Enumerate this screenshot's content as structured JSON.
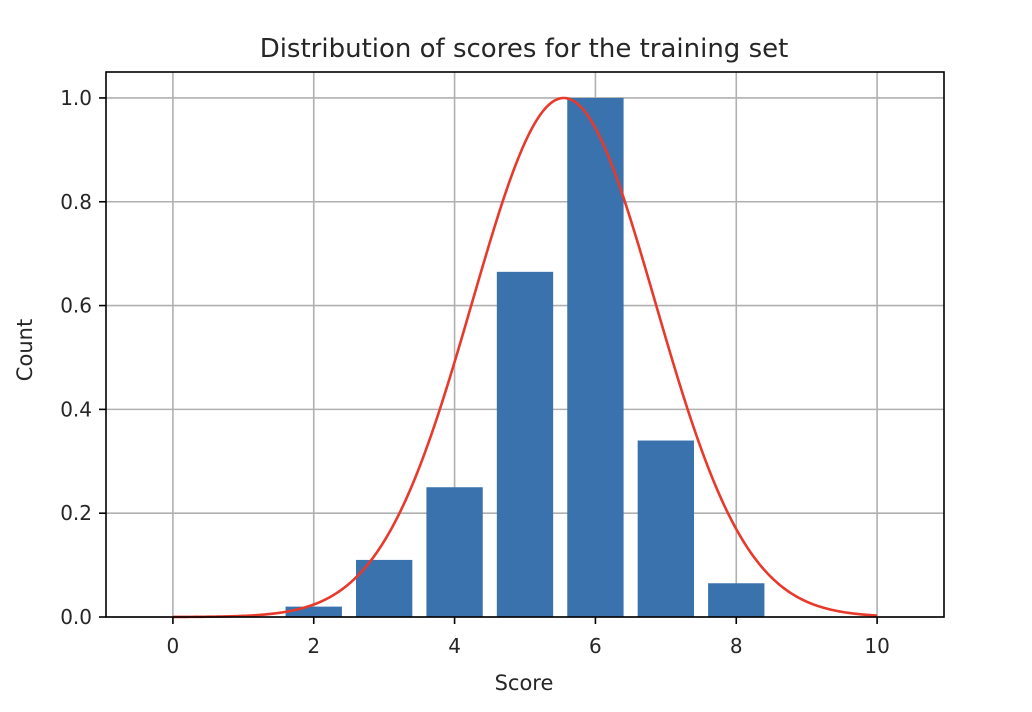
{
  "chart_data": {
    "type": "bar",
    "title": "Distribution of scores for the training set",
    "xlabel": "Score",
    "ylabel": "Count",
    "xlim": [
      -0.95,
      10.95
    ],
    "ylim": [
      0,
      1.05
    ],
    "x_ticks": [
      0,
      2,
      4,
      6,
      8,
      10
    ],
    "x_tick_labels": [
      "0",
      "2",
      "4",
      "6",
      "8",
      "10"
    ],
    "y_ticks": [
      0,
      0.2,
      0.4,
      0.6,
      0.8,
      1.0
    ],
    "y_tick_labels": [
      "0.0",
      "0.2",
      "0.4",
      "0.6",
      "0.8",
      "1.0"
    ],
    "grid": true,
    "bars": {
      "x": [
        2,
        3,
        4,
        5,
        6,
        7,
        8
      ],
      "values": [
        0.02,
        0.11,
        0.25,
        0.665,
        1.0,
        0.34,
        0.065
      ],
      "color": "#3a72ad"
    },
    "curve": {
      "type": "gaussian",
      "mean": 5.55,
      "std": 1.3,
      "peak": 1.0,
      "x_range": [
        0,
        10
      ],
      "color": "#e8392b"
    }
  }
}
